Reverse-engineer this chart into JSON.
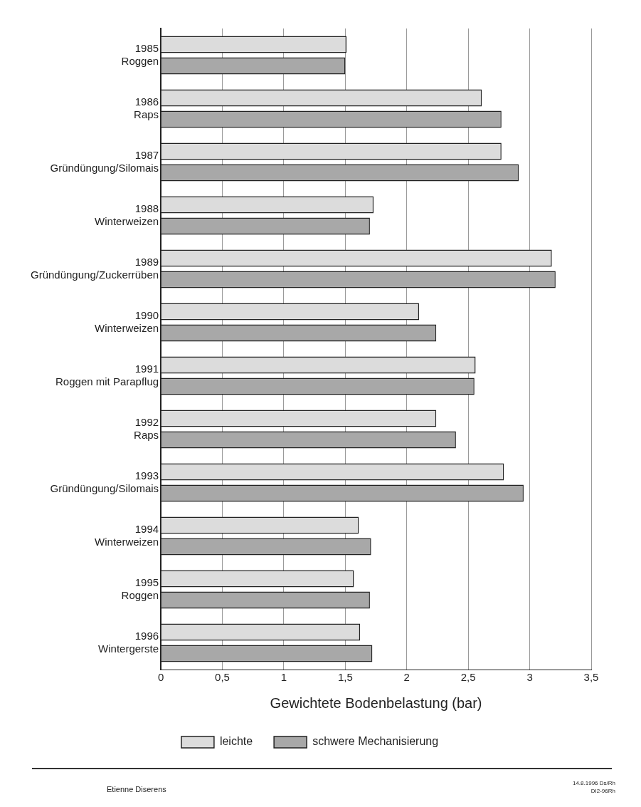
{
  "chart_data": {
    "type": "bar",
    "orientation": "horizontal",
    "categories": [
      "1985\nRoggen",
      "1986\nRaps",
      "1987\nGründüngung/Silomais",
      "1988\nWinterweizen",
      "1989\nGründüngung/Zuckerrüben",
      "1990\nWinterweizen",
      "1991\nRoggen mit Parapflug",
      "1992\nRaps",
      "1993\nGründüngung/Silomais",
      "1994\nWinterweizen",
      "1995\nRoggen",
      "1996\nWintergerste"
    ],
    "series": [
      {
        "name": "leichte",
        "color": "#dcdcdc",
        "values": [
          1.51,
          2.61,
          2.77,
          1.73,
          3.18,
          2.1,
          2.56,
          2.24,
          2.79,
          1.61,
          1.57,
          1.62
        ]
      },
      {
        "name": "schwere Mechanisierung",
        "color": "#a8a8a8",
        "values": [
          1.5,
          2.77,
          2.91,
          1.7,
          3.21,
          2.24,
          2.55,
          2.4,
          2.95,
          1.71,
          1.7,
          1.72
        ]
      }
    ],
    "xlim": [
      0,
      3.5
    ],
    "xticks": [
      0,
      {
        "value": 0.5,
        "label": "0,5"
      },
      1,
      {
        "value": 1.5,
        "label": "1,5"
      },
      2,
      {
        "value": 2.5,
        "label": "2,5"
      },
      3,
      {
        "value": 3.5,
        "label": "3,5"
      }
    ],
    "xlabel": "Gewichtete Bodenbelastung (bar)",
    "grid": "x",
    "legend": "bottom",
    "annotations": [
      "Etienne Diserens",
      "14.8.1996 Ds/Rh",
      "DI2-96Rh"
    ]
  }
}
